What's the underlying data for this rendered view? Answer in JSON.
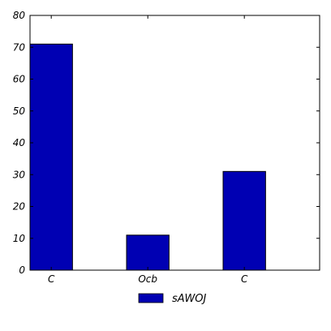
{
  "chart_data": {
    "type": "bar",
    "categories": [
      "C",
      "Ocb",
      "C"
    ],
    "series": [
      {
        "name": "sAWOJ",
        "values": [
          71,
          11,
          31
        ],
        "color": "#0000b3"
      }
    ],
    "ylim": [
      0,
      80
    ],
    "yticks": [
      0,
      10,
      20,
      30,
      40,
      50,
      60,
      70,
      80
    ],
    "grid": false,
    "legend": "bottom-center"
  }
}
